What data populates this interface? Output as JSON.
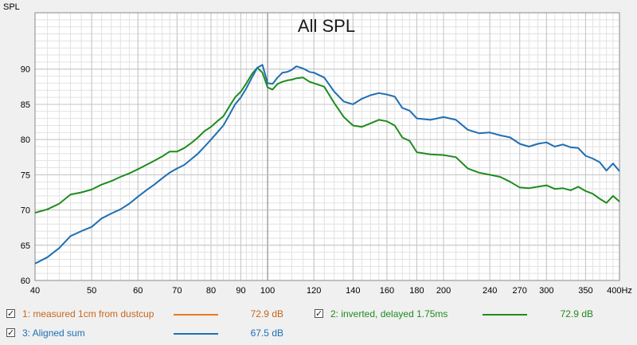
{
  "chart_data": {
    "type": "line",
    "title": "All SPL",
    "ylabel": "SPL",
    "xlabel": "",
    "x_scale": "log",
    "xlim": [
      40,
      400
    ],
    "ylim": [
      60,
      98
    ],
    "grid": true,
    "y_ticks": [
      60,
      65,
      70,
      75,
      80,
      85,
      90
    ],
    "x_ticks": [
      {
        "value": 40,
        "label": "40"
      },
      {
        "value": 50,
        "label": "50"
      },
      {
        "value": 60,
        "label": "60"
      },
      {
        "value": 70,
        "label": "70"
      },
      {
        "value": 80,
        "label": "80"
      },
      {
        "value": 90,
        "label": "90"
      },
      {
        "value": 100,
        "label": "100"
      },
      {
        "value": 120,
        "label": "120"
      },
      {
        "value": 140,
        "label": "140"
      },
      {
        "value": 160,
        "label": "160"
      },
      {
        "value": 180,
        "label": "180"
      },
      {
        "value": 200,
        "label": "200"
      },
      {
        "value": 240,
        "label": "240"
      },
      {
        "value": 270,
        "label": "270"
      },
      {
        "value": 300,
        "label": "300"
      },
      {
        "value": 350,
        "label": "350"
      },
      {
        "value": 400,
        "label": "400Hz"
      }
    ],
    "series": [
      {
        "name": "2: inverted, delayed 1.75ms",
        "color": "#1e8c1e",
        "x": [
          40,
          42,
          44,
          46,
          48,
          50,
          52,
          54,
          56,
          58,
          60,
          62,
          64,
          66,
          68,
          70,
          72,
          74,
          76,
          78,
          80,
          82,
          84,
          86,
          88,
          90,
          92,
          94,
          96,
          98,
          100,
          102,
          104,
          106,
          108,
          110,
          112,
          115,
          118,
          120,
          125,
          130,
          135,
          140,
          145,
          150,
          155,
          160,
          165,
          170,
          175,
          180,
          190,
          200,
          210,
          220,
          230,
          240,
          250,
          260,
          270,
          280,
          290,
          300,
          310,
          320,
          330,
          340,
          350,
          360,
          370,
          380,
          390,
          400
        ],
        "y": [
          69.6,
          70.1,
          70.9,
          72.2,
          72.5,
          72.9,
          73.6,
          74.1,
          74.7,
          75.2,
          75.8,
          76.4,
          77.0,
          77.6,
          78.3,
          78.3,
          78.8,
          79.5,
          80.3,
          81.2,
          81.8,
          82.6,
          83.3,
          84.7,
          86.0,
          86.8,
          88.0,
          89.3,
          90.2,
          89.5,
          87.4,
          87.1,
          87.9,
          88.2,
          88.4,
          88.5,
          88.7,
          88.8,
          88.2,
          88.0,
          87.5,
          85.2,
          83.2,
          82.0,
          81.8,
          82.3,
          82.8,
          82.6,
          82.0,
          80.3,
          79.8,
          78.2,
          77.9,
          77.8,
          77.5,
          75.9,
          75.3,
          75.0,
          74.7,
          74.0,
          73.2,
          73.1,
          73.3,
          73.5,
          73.0,
          73.1,
          72.8,
          73.3,
          72.7,
          72.3,
          71.6,
          71.0,
          72.0,
          71.2
        ]
      },
      {
        "name": "3: Aligned sum",
        "color": "#1f6fb3",
        "x": [
          40,
          42,
          44,
          46,
          48,
          50,
          52,
          54,
          56,
          58,
          60,
          62,
          64,
          66,
          68,
          70,
          72,
          74,
          76,
          78,
          80,
          82,
          84,
          86,
          88,
          90,
          92,
          94,
          96,
          98,
          100,
          102,
          104,
          106,
          108,
          110,
          112,
          115,
          118,
          120,
          125,
          130,
          135,
          140,
          145,
          150,
          155,
          160,
          165,
          170,
          175,
          180,
          190,
          200,
          210,
          220,
          230,
          240,
          250,
          260,
          270,
          280,
          290,
          300,
          310,
          320,
          330,
          340,
          350,
          360,
          370,
          380,
          390,
          400
        ],
        "y": [
          62.4,
          63.3,
          64.6,
          66.3,
          67.0,
          67.6,
          68.8,
          69.5,
          70.1,
          70.9,
          71.9,
          72.8,
          73.6,
          74.5,
          75.3,
          75.9,
          76.4,
          77.2,
          78.0,
          79.0,
          80.0,
          81.0,
          82.0,
          83.5,
          85.0,
          86.0,
          87.3,
          88.8,
          90.2,
          90.6,
          88.0,
          87.9,
          88.8,
          89.5,
          89.6,
          89.9,
          90.4,
          90.1,
          89.6,
          89.5,
          88.8,
          86.8,
          85.4,
          85.0,
          85.8,
          86.3,
          86.6,
          86.4,
          86.1,
          84.5,
          84.1,
          83.0,
          82.8,
          83.2,
          82.8,
          81.4,
          80.9,
          81.0,
          80.6,
          80.3,
          79.4,
          79.0,
          79.4,
          79.6,
          79.0,
          79.3,
          78.9,
          78.8,
          77.7,
          77.3,
          76.8,
          75.6,
          76.6,
          75.5
        ]
      }
    ],
    "legend": [
      {
        "label": "1: measured 1cm from dustcup",
        "color": "#e8791f",
        "value": "72.9 dB",
        "checked": true
      },
      {
        "label": "2: inverted, delayed 1.75ms",
        "color": "#1e8c1e",
        "value": "72.9 dB",
        "checked": true
      },
      {
        "label": "3: Aligned sum",
        "color": "#1f6fb3",
        "value": "67.5 dB",
        "checked": true
      }
    ]
  }
}
